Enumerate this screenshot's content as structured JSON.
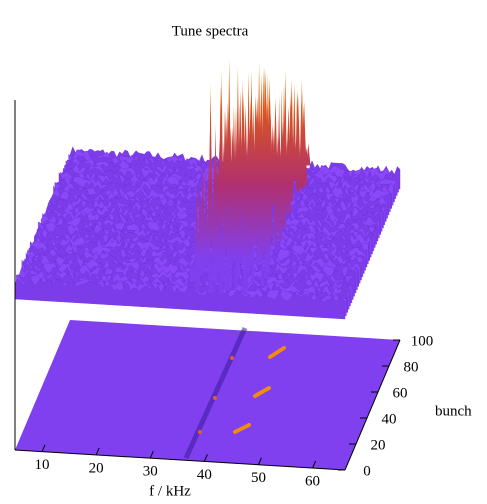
{
  "chart_data": {
    "type": "surface",
    "title": "Tune spectra",
    "xlabel": "f / kHz",
    "ylabel": "bunch",
    "xlim": [
      5,
      66
    ],
    "xticks": [
      10,
      20,
      30,
      40,
      50,
      60
    ],
    "ylim": [
      0,
      100
    ],
    "yticks": [
      0,
      20,
      40,
      60,
      80,
      100
    ]
  }
}
